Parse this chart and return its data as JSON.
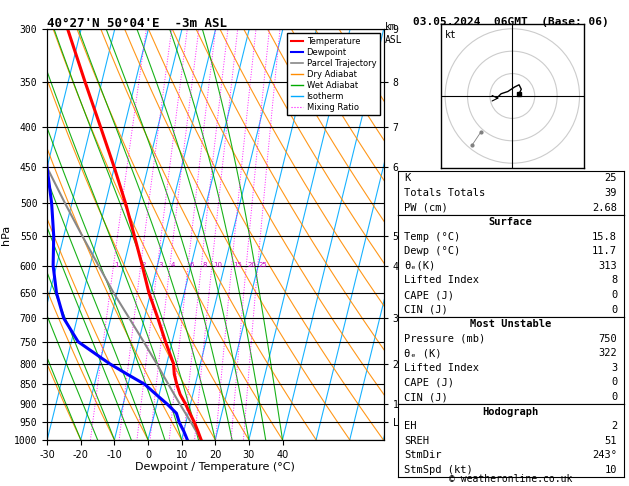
{
  "title_left": "40°27'N 50°04'E  -3m ASL",
  "title_right": "03.05.2024  06GMT  (Base: 06)",
  "xlabel": "Dewpoint / Temperature (°C)",
  "copyright": "© weatheronline.co.uk",
  "pressure_levels": [
    300,
    350,
    400,
    450,
    500,
    550,
    600,
    650,
    700,
    750,
    800,
    850,
    900,
    950,
    1000
  ],
  "temp_profile_p": [
    1000,
    975,
    950,
    925,
    900,
    875,
    850,
    825,
    800,
    750,
    700,
    650,
    600,
    550,
    500,
    450,
    400,
    350,
    300
  ],
  "temp_profile_t": [
    15.8,
    14.2,
    12.5,
    10.5,
    8.5,
    6.2,
    4.5,
    3.0,
    2.0,
    -2.0,
    -6.0,
    -10.5,
    -14.5,
    -19.0,
    -24.0,
    -30.0,
    -37.0,
    -45.0,
    -54.0
  ],
  "dewp_profile_p": [
    1000,
    975,
    950,
    925,
    900,
    875,
    850,
    825,
    800,
    750,
    700,
    650,
    600,
    550,
    500,
    450,
    400,
    350,
    300
  ],
  "dewp_profile_t": [
    11.7,
    10.0,
    8.0,
    6.5,
    3.0,
    -1.0,
    -5.0,
    -11.0,
    -17.0,
    -28.0,
    -34.0,
    -38.0,
    -41.0,
    -43.0,
    -46.0,
    -50.0,
    -54.0,
    -59.0,
    -64.0
  ],
  "parcel_profile_p": [
    1000,
    950,
    900,
    850,
    800,
    750,
    700,
    650,
    600,
    550,
    500,
    450,
    400,
    350,
    300
  ],
  "parcel_profile_t": [
    15.8,
    11.5,
    6.8,
    2.0,
    -3.0,
    -8.5,
    -14.5,
    -21.0,
    -27.5,
    -34.5,
    -42.0,
    -50.0,
    -58.5,
    -67.5,
    -77.0
  ],
  "mixing_ratio_lines": [
    1,
    2,
    3,
    4,
    6,
    8,
    10,
    15,
    20,
    25
  ],
  "info_k": "25",
  "info_tt": "39",
  "info_pw": "2.68",
  "info_temp": "15.8",
  "info_dewp": "11.7",
  "info_theta_e_s": "313",
  "info_li_s": "8",
  "info_cape_s": "0",
  "info_cin_s": "0",
  "info_pres_mu": "750",
  "info_theta_e_mu": "322",
  "info_li_mu": "3",
  "info_cape_mu": "0",
  "info_cin_mu": "0",
  "info_eh": "2",
  "info_sreh": "51",
  "info_stmdir": "243°",
  "info_stmspd": "10",
  "km_map_pressures": [
    300,
    350,
    400,
    450,
    550,
    600,
    700,
    800,
    900,
    950
  ],
  "km_map_labels": [
    "9",
    "8",
    "7",
    "6",
    "5",
    "4",
    "3",
    "2",
    "1",
    "LCL"
  ],
  "temp_ticks": [
    -30,
    -20,
    -10,
    0,
    10,
    20,
    30,
    40
  ],
  "dry_adiabat_thetas": [
    -30,
    -20,
    -10,
    0,
    10,
    20,
    30,
    40,
    50,
    60,
    70,
    80,
    90,
    100,
    110,
    120,
    130,
    140,
    150
  ],
  "wet_adiabat_T0s": [
    -20,
    -15,
    -10,
    -5,
    0,
    5,
    10,
    15,
    20,
    25,
    30,
    35,
    40
  ]
}
